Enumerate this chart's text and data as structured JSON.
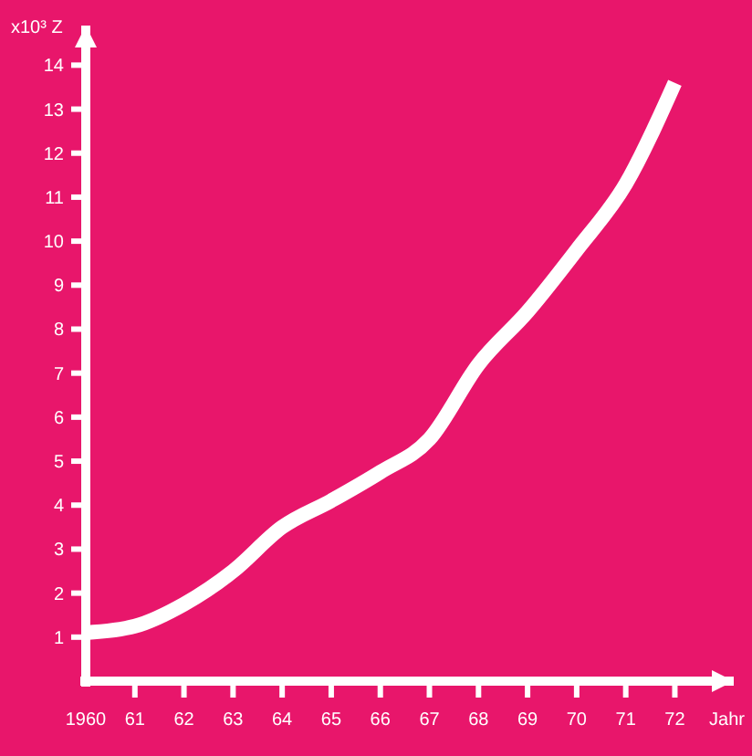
{
  "chart_data": {
    "type": "line",
    "ylabel": "x10³ Z",
    "xlabel": "Jahr",
    "x": [
      1960,
      1961,
      1962,
      1963,
      1964,
      1965,
      1966,
      1967,
      1968,
      1969,
      1970,
      1971,
      1972
    ],
    "series": [
      {
        "color": "#ffffff",
        "values": [
          1.1,
          1.25,
          1.75,
          2.5,
          3.5,
          4.1,
          4.75,
          5.5,
          7.2,
          8.4,
          9.8,
          11.3,
          13.6
        ]
      }
    ],
    "xlim": [
      1960,
      1973.2
    ],
    "xticks": [
      {
        "value": 1960,
        "label": "1960"
      },
      {
        "value": 1961,
        "label": "61"
      },
      {
        "value": 1962,
        "label": "62"
      },
      {
        "value": 1963,
        "label": "63"
      },
      {
        "value": 1964,
        "label": "64"
      },
      {
        "value": 1965,
        "label": "65"
      },
      {
        "value": 1966,
        "label": "66"
      },
      {
        "value": 1967,
        "label": "67"
      },
      {
        "value": 1968,
        "label": "68"
      },
      {
        "value": 1969,
        "label": "69"
      },
      {
        "value": 1970,
        "label": "70"
      },
      {
        "value": 1971,
        "label": "71"
      },
      {
        "value": 1972,
        "label": "72"
      }
    ],
    "ylim": [
      0,
      14.9
    ],
    "yticks": [
      1,
      2,
      3,
      4,
      5,
      6,
      7,
      8,
      9,
      10,
      11,
      12,
      13,
      14
    ],
    "grid": false,
    "marker": "none",
    "line_style": "solid"
  }
}
